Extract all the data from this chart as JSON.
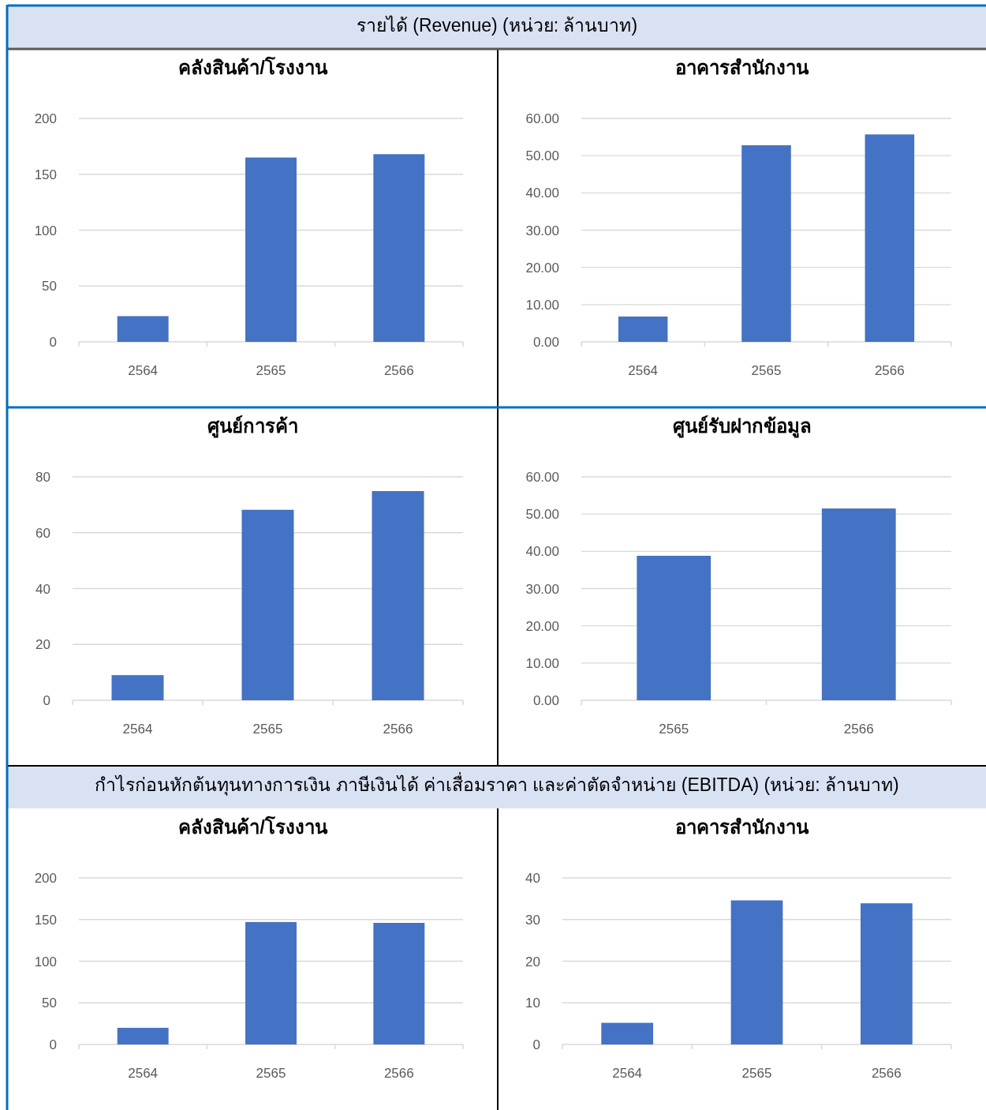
{
  "chart_data": [
    {
      "type": "bar",
      "annotations": [
        "รายได้ (Revenue) (หน่วย: ล้านบาท)"
      ],
      "title": "คลังสินค้า/โรงงาน",
      "categories": [
        "2564",
        "2565",
        "2566"
      ],
      "values": [
        23,
        165,
        168
      ],
      "color": "#4472c4",
      "ylim": [
        0,
        200
      ],
      "yticks": [
        0,
        50,
        100,
        150,
        200
      ],
      "grid": "y"
    },
    {
      "type": "bar",
      "title": "อาคารสำนักงาน",
      "categories": [
        "2564",
        "2565",
        "2566"
      ],
      "values": [
        6.8,
        52.8,
        55.7
      ],
      "color": "#4472c4",
      "ylim": [
        0,
        60
      ],
      "yticks": [
        {
          "value": 0,
          "label": "0.00"
        },
        {
          "value": 10,
          "label": "10.00"
        },
        {
          "value": 20,
          "label": "20.00"
        },
        {
          "value": 30,
          "label": "30.00"
        },
        {
          "value": 40,
          "label": "40.00"
        },
        {
          "value": 50,
          "label": "50.00"
        },
        {
          "value": 60,
          "label": "60.00"
        }
      ],
      "grid": "y"
    },
    {
      "type": "bar",
      "title": "ศูนย์การค้า",
      "categories": [
        "2564",
        "2565",
        "2566"
      ],
      "values": [
        9,
        68.2,
        74.9
      ],
      "color": "#4472c4",
      "ylim": [
        0,
        80
      ],
      "yticks": [
        0,
        20,
        40,
        60,
        80
      ],
      "grid": "y"
    },
    {
      "type": "bar",
      "title": "ศูนย์รับฝากข้อมูล",
      "categories": [
        "2565",
        "2566"
      ],
      "values": [
        38.8,
        51.5
      ],
      "color": "#4472c4",
      "ylim": [
        0,
        60
      ],
      "yticks": [
        {
          "value": 0,
          "label": "0.00"
        },
        {
          "value": 10,
          "label": "10.00"
        },
        {
          "value": 20,
          "label": "20.00"
        },
        {
          "value": 30,
          "label": "30.00"
        },
        {
          "value": 40,
          "label": "40.00"
        },
        {
          "value": 50,
          "label": "50.00"
        },
        {
          "value": 60,
          "label": "60.00"
        }
      ],
      "grid": "y"
    },
    {
      "type": "bar",
      "annotations": [
        "กำไรก่อนหักต้นทุนทางการเงิน ภาษีเงินได้ ค่าเสื่อมราคา และค่าตัดจำหน่าย (EBITDA) (หน่วย: ล้านบาท)"
      ],
      "title": "คลังสินค้า/โรงงาน",
      "categories": [
        "2564",
        "2565",
        "2566"
      ],
      "values": [
        20,
        147,
        146
      ],
      "color": "#4472c4",
      "ylim": [
        0,
        200
      ],
      "yticks": [
        0,
        50,
        100,
        150,
        200
      ],
      "grid": "y"
    },
    {
      "type": "bar",
      "title": "อาคารสำนักงาน",
      "categories": [
        "2564",
        "2565",
        "2566"
      ],
      "values": [
        5.2,
        34.6,
        33.9
      ],
      "color": "#4472c4",
      "ylim": [
        0,
        40
      ],
      "yticks": [
        0,
        10,
        20,
        30,
        40
      ],
      "grid": "y"
    }
  ]
}
